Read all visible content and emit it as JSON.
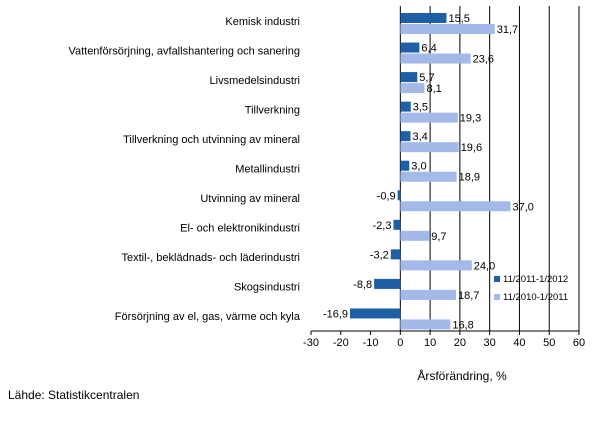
{
  "chart_data": {
    "type": "bar",
    "orientation": "horizontal",
    "categories": [
      "Kemisk industri",
      "Vattenförsörjning, avfallshantering och sanering",
      "Livsmedelsindustri",
      "Tillverkning",
      "Tillverkning och utvinning av mineral",
      "Metallindustri",
      "Utvinning av mineral",
      "El- och elektronikindustri",
      "Textil-, beklädnads- och läderindustri",
      "Skogsindustri",
      "Försörjning av el, gas, värme och kyla"
    ],
    "series": [
      {
        "name": "11/2011-1/2012",
        "color": "#1f5fa6",
        "values": [
          15.5,
          6.4,
          5.7,
          3.5,
          3.4,
          3.0,
          -0.9,
          -2.3,
          -3.2,
          -8.8,
          -16.9
        ],
        "labels": [
          "15,5",
          "6,4",
          "5,7",
          "3,5",
          "3,4",
          "3,0",
          "-0,9",
          "-2,3",
          "-3,2",
          "-8,8",
          "-16,9"
        ]
      },
      {
        "name": "11/2010-1/2011",
        "color": "#a3b9e8",
        "values": [
          31.7,
          23.6,
          8.1,
          19.3,
          19.6,
          18.9,
          37.0,
          9.7,
          24.0,
          18.7,
          16.8
        ],
        "labels": [
          "31,7",
          "23,6",
          "8,1",
          "19,3",
          "19,6",
          "18,9",
          "37,0",
          "9,7",
          "24,0",
          "18,7",
          "16,8"
        ]
      }
    ],
    "xlim": [
      -30,
      60
    ],
    "xticks": [
      -30,
      -20,
      -10,
      0,
      10,
      20,
      30,
      40,
      50,
      60
    ],
    "xlabel": "Årsförändring, %",
    "grid": "vertical",
    "legend_position": "bottom-right"
  },
  "source": "Lähde: Statistikcentralen"
}
